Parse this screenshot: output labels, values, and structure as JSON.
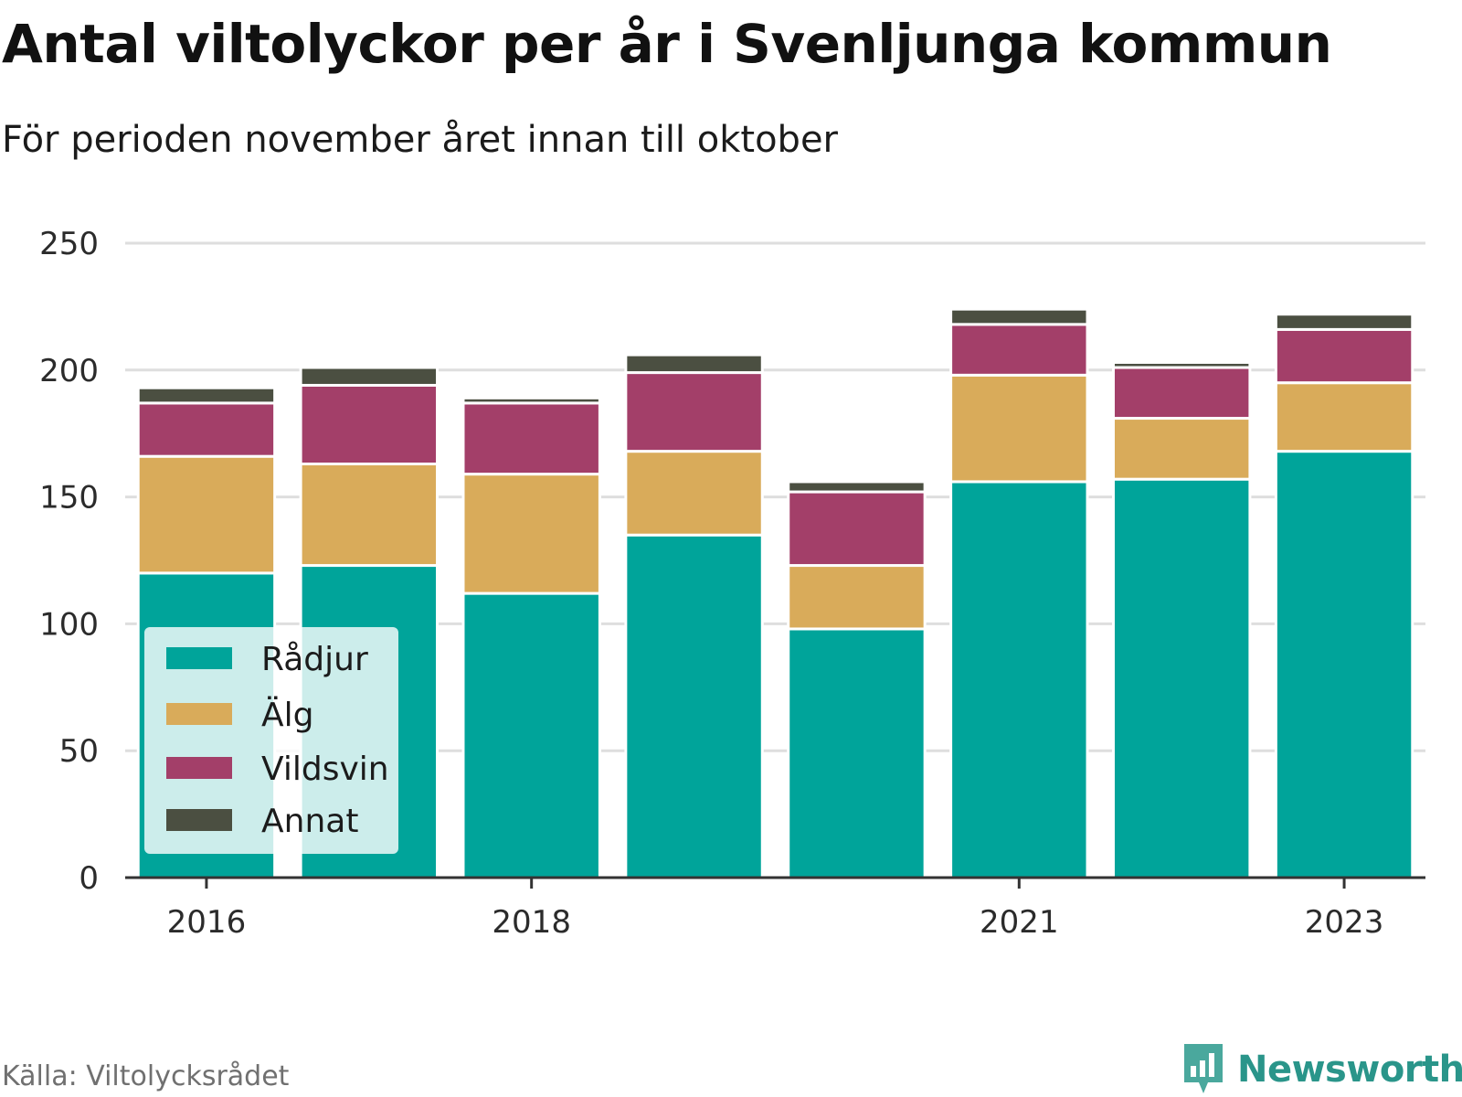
{
  "title": "Antal viltolyckor per år i Svenljunga kommun",
  "subtitle": "För perioden november året innan till oktober",
  "source": "Källa: Viltolycksrådet",
  "brand": {
    "name": "Newsworthy",
    "icon": "newsworthy-logo-icon",
    "color": "#2a958a"
  },
  "chart_data": {
    "type": "bar",
    "stacked": true,
    "categories": [
      "2016",
      "2017",
      "2018",
      "2019",
      "2020",
      "2021",
      "2022",
      "2023"
    ],
    "x_tick_labels": [
      "2016",
      "2018",
      "2021",
      "2023"
    ],
    "series": [
      {
        "name": "Rådjur",
        "color": "#00a49a",
        "values": [
          120,
          123,
          112,
          135,
          98,
          156,
          157,
          168
        ]
      },
      {
        "name": "Älg",
        "color": "#d9ab5a",
        "values": [
          46,
          40,
          47,
          33,
          25,
          42,
          24,
          27
        ]
      },
      {
        "name": "Vildsvin",
        "color": "#a33f69",
        "values": [
          21,
          31,
          28,
          31,
          29,
          20,
          20,
          21
        ]
      },
      {
        "name": "Annat",
        "color": "#4b4f41",
        "values": [
          6,
          7,
          2,
          7,
          4,
          6,
          2,
          6
        ]
      }
    ],
    "ylim": [
      0,
      250
    ],
    "yticks": [
      "0",
      "50",
      "100",
      "150",
      "200",
      "250"
    ],
    "grid": true,
    "legend": "bottom-left"
  }
}
